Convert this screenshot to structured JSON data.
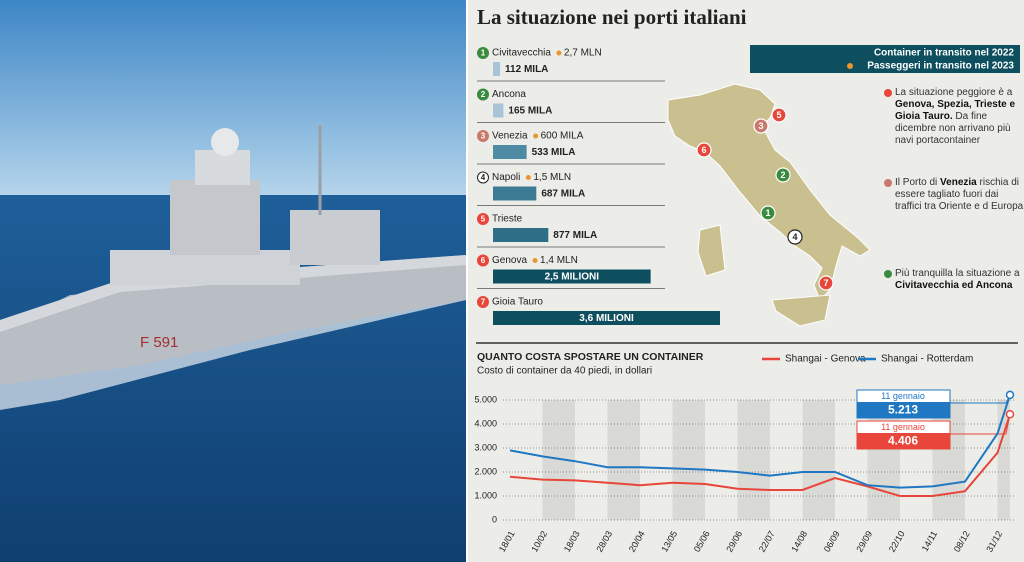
{
  "photo": {
    "hull_number": "F 591"
  },
  "title": "La situazione nei porti italiani",
  "legend": {
    "containers": "Container in transito nel 2022",
    "passengers": "Passeggeri in transito nel 2023"
  },
  "notes": [
    {
      "color": "#e8463a",
      "parts": [
        {
          "text": "La situazione peggiore è a ",
          "bold": false
        },
        {
          "text": "Genova, Spezia, Trieste e Gioia Tauro.",
          "bold": true
        },
        {
          "text": " Da fine dicembre non arrivano più navi portacontainer",
          "bold": false
        }
      ]
    },
    {
      "color": "#c97a6f",
      "parts": [
        {
          "text": "Il Porto di ",
          "bold": false
        },
        {
          "text": "Venezia",
          "bold": true
        },
        {
          "text": " rischia di essere tagliato fuori dai traffici tra Oriente e d Europa",
          "bold": false
        }
      ]
    },
    {
      "color": "#3a8a3f",
      "parts": [
        {
          "text": "Più tranquilla la situazione a ",
          "bold": false
        },
        {
          "text": "Civitavecchia ed Ancona",
          "bold": true
        }
      ]
    }
  ],
  "chart_data": [
    {
      "type": "bar",
      "numbers": [
        "1",
        "2",
        "3",
        "4",
        "5",
        "6",
        "7"
      ],
      "number_colors": [
        "#3a8a3f",
        "#3a8a3f",
        "#c97a6f",
        "#ffffff",
        "#e8463a",
        "#e8463a",
        "#e8463a"
      ],
      "categories": [
        "Civitavecchia",
        "Ancona",
        "Venezia",
        "Napoli",
        "Trieste",
        "Genova",
        "Gioia Tauro"
      ],
      "values": [
        112000,
        165000,
        533000,
        687000,
        877000,
        2500000,
        3600000
      ],
      "value_labels": [
        "112 MILA",
        "165 MILA",
        "533 MILA",
        "687 MILA",
        "877 MILA",
        "2,5 MILIONI",
        "3,6 MILIONI"
      ],
      "colors": [
        "#a9c4d6",
        "#a9c4d6",
        "#4f8aa5",
        "#3d7a93",
        "#2f6f86",
        "#0d4f5e",
        "#0d4f5e"
      ],
      "passengers": {
        "color": "#e8962f",
        "values": [
          2700000,
          null,
          600000,
          1500000,
          null,
          1400000,
          null
        ],
        "value_labels": [
          "2,7 MLN",
          null,
          "600 MILA",
          "1,5 MLN",
          null,
          "1,4 MLN",
          null
        ]
      }
    },
    {
      "type": "line",
      "title": "QUANTO COSTA SPOSTARE UN CONTAINER",
      "subtitle": "Costo di container da 40 piedi, in dollari",
      "categories": [
        "18/01",
        "10/02",
        "18/03",
        "28/03",
        "20/04",
        "13/05",
        "05/06",
        "29/06",
        "22/07",
        "14/08",
        "06/09",
        "29/09",
        "22/10",
        "14/11",
        "08/12",
        "31/12",
        null
      ],
      "ylim": [
        0,
        5000
      ],
      "yticks": [
        0,
        {
          "value": 1000,
          "label": "1.000"
        },
        {
          "value": 2000,
          "label": "2.000"
        },
        {
          "value": 3000,
          "label": "3.000"
        },
        {
          "value": 4000,
          "label": "4.000"
        },
        {
          "value": 5000,
          "label": "5.000"
        }
      ],
      "grid": true,
      "series": [
        {
          "name": "Shangai - Genova",
          "color": "#e8463a",
          "annotation": "11 gennaio",
          "values": [
            1800,
            1680,
            1650,
            1550,
            1450,
            1550,
            1500,
            1300,
            1250,
            1250,
            1750,
            1400,
            1000,
            1000,
            1200,
            2800,
            4406
          ],
          "value_labels": [
            null,
            null,
            null,
            null,
            null,
            null,
            null,
            null,
            null,
            null,
            null,
            null,
            null,
            null,
            null,
            null,
            "4.406"
          ]
        },
        {
          "name": "Shangai - Rotterdam",
          "color": "#1f78c1",
          "annotation": "11 gennaio",
          "values": [
            2900,
            2650,
            2450,
            2200,
            2200,
            2150,
            2100,
            2000,
            1850,
            2000,
            2000,
            1450,
            1350,
            1400,
            1600,
            3600,
            5213
          ],
          "value_labels": [
            null,
            null,
            null,
            null,
            null,
            null,
            null,
            null,
            null,
            null,
            null,
            null,
            null,
            null,
            null,
            null,
            "5.213"
          ]
        }
      ]
    }
  ]
}
